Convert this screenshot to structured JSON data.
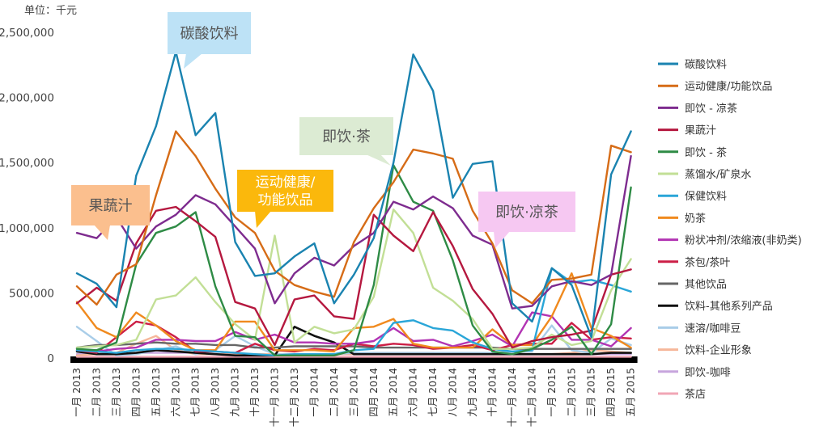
{
  "chart_data": {
    "type": "line",
    "unit_label": "单位：千元",
    "ylim": [
      0,
      2500000
    ],
    "yticks": [
      0,
      500000,
      1000000,
      1500000,
      2000000,
      2500000
    ],
    "ytick_labels": [
      "0",
      "500,000",
      "1,000,000",
      "1,500,000",
      "2,000,000",
      "2,500,000"
    ],
    "grid": false,
    "legend_position": "right",
    "categories": [
      "一月 2013",
      "二月 2013",
      "三月 2013",
      "四月 2013",
      "五月 2013",
      "六月 2013",
      "七月 2013",
      "八月 2013",
      "九月 2013",
      "十月 2013",
      "十一月 2013",
      "十二月 2013",
      "一月 2014",
      "二月 2014",
      "三月 2014",
      "四月 2014",
      "五月 2014",
      "六月 2014",
      "七月 2014",
      "八月 2014",
      "九月 2014",
      "十月 2014",
      "十一月 2014",
      "十二月 2014",
      "一月 2015",
      "二月 2015",
      "三月 2015",
      "四月 2015",
      "五月 2015"
    ],
    "series": [
      {
        "name": "碳酸饮料",
        "color": "#1a83b0",
        "values": [
          650000,
          570000,
          390000,
          1400000,
          1780000,
          2350000,
          1710000,
          1880000,
          890000,
          630000,
          650000,
          780000,
          880000,
          420000,
          640000,
          920000,
          1500000,
          2330000,
          2050000,
          1230000,
          1490000,
          1510000,
          420000,
          280000,
          690000,
          560000,
          160000,
          1410000,
          1740000
        ]
      },
      {
        "name": "运动健康/功能饮品",
        "color": "#d66c17",
        "values": [
          550000,
          410000,
          640000,
          720000,
          1250000,
          1740000,
          1550000,
          1300000,
          1080000,
          960000,
          670000,
          560000,
          510000,
          470000,
          890000,
          1150000,
          1350000,
          1600000,
          1570000,
          1530000,
          1130000,
          880000,
          520000,
          420000,
          600000,
          610000,
          640000,
          1630000,
          1580000
        ]
      },
      {
        "name": "即饮 - 凉茶",
        "color": "#7e2c8f",
        "values": [
          960000,
          920000,
          1080000,
          840000,
          1010000,
          1100000,
          1250000,
          1180000,
          1010000,
          840000,
          420000,
          650000,
          770000,
          710000,
          860000,
          960000,
          1200000,
          1140000,
          1240000,
          1150000,
          940000,
          870000,
          380000,
          400000,
          550000,
          590000,
          560000,
          640000,
          1550000
        ]
      },
      {
        "name": "果蔬汁",
        "color": "#b5183f",
        "values": [
          420000,
          540000,
          440000,
          880000,
          1130000,
          1160000,
          1050000,
          930000,
          430000,
          380000,
          100000,
          450000,
          480000,
          320000,
          300000,
          1100000,
          940000,
          820000,
          1120000,
          860000,
          530000,
          340000,
          80000,
          130000,
          160000,
          180000,
          210000,
          640000,
          680000
        ]
      },
      {
        "name": "即饮 - 茶",
        "color": "#2e8b45",
        "values": [
          70000,
          60000,
          120000,
          720000,
          960000,
          1010000,
          1120000,
          550000,
          170000,
          160000,
          20000,
          20000,
          20000,
          20000,
          60000,
          560000,
          1480000,
          1200000,
          1130000,
          750000,
          250000,
          50000,
          30000,
          70000,
          140000,
          240000,
          30000,
          260000,
          1310000
        ]
      },
      {
        "name": "蒸馏水/矿泉水",
        "color": "#c2df96",
        "values": [
          80000,
          90000,
          100000,
          140000,
          450000,
          480000,
          620000,
          430000,
          260000,
          140000,
          940000,
          120000,
          240000,
          190000,
          220000,
          470000,
          1140000,
          960000,
          540000,
          440000,
          300000,
          70000,
          70000,
          80000,
          180000,
          100000,
          130000,
          520000,
          760000
        ]
      },
      {
        "name": "保健饮料",
        "color": "#2aa6d8",
        "values": [
          60000,
          50000,
          40000,
          60000,
          70000,
          70000,
          60000,
          50000,
          40000,
          30000,
          20000,
          30000,
          30000,
          30000,
          60000,
          70000,
          270000,
          290000,
          230000,
          210000,
          120000,
          70000,
          50000,
          60000,
          690000,
          580000,
          600000,
          560000,
          510000
        ]
      },
      {
        "name": "奶茶",
        "color": "#f08a1e",
        "values": [
          430000,
          230000,
          160000,
          350000,
          250000,
          130000,
          60000,
          60000,
          280000,
          280000,
          60000,
          60000,
          60000,
          50000,
          230000,
          240000,
          300000,
          110000,
          80000,
          80000,
          80000,
          220000,
          100000,
          100000,
          320000,
          650000,
          230000,
          170000,
          80000
        ]
      },
      {
        "name": "粉状冲剂/浓缩液(非奶类)",
        "color": "#b234b3",
        "values": [
          70000,
          50000,
          70000,
          80000,
          140000,
          140000,
          130000,
          130000,
          200000,
          140000,
          180000,
          120000,
          120000,
          110000,
          110000,
          130000,
          230000,
          130000,
          140000,
          90000,
          130000,
          180000,
          90000,
          350000,
          320000,
          140000,
          140000,
          90000,
          230000
        ]
      },
      {
        "name": "茶包/茶叶",
        "color": "#cc1f46",
        "values": [
          60000,
          40000,
          160000,
          280000,
          250000,
          160000,
          50000,
          50000,
          40000,
          110000,
          60000,
          50000,
          70000,
          60000,
          110000,
          90000,
          110000,
          100000,
          70000,
          80000,
          100000,
          60000,
          100000,
          110000,
          110000,
          270000,
          140000,
          160000,
          150000
        ]
      },
      {
        "name": "其他饮品",
        "color": "#666666",
        "values": [
          80000,
          100000,
          100000,
          110000,
          120000,
          110000,
          110000,
          100000,
          100000,
          80000,
          80000,
          90000,
          90000,
          90000,
          90000,
          80000,
          80000,
          80000,
          80000,
          80000,
          80000,
          80000,
          70000,
          70000,
          70000,
          70000,
          70000,
          70000,
          70000
        ]
      },
      {
        "name": "饮料-其他系列产品",
        "color": "#111111",
        "values": [
          50000,
          30000,
          30000,
          40000,
          60000,
          50000,
          40000,
          30000,
          20000,
          20000,
          20000,
          240000,
          170000,
          120000,
          30000,
          30000,
          30000,
          30000,
          30000,
          30000,
          30000,
          30000,
          30000,
          30000,
          30000,
          30000,
          30000,
          40000,
          40000
        ]
      },
      {
        "name": "速溶/咖啡豆",
        "color": "#a9cde8",
        "values": [
          240000,
          130000,
          20000,
          30000,
          60000,
          90000,
          30000,
          60000,
          170000,
          90000,
          30000,
          30000,
          30000,
          30000,
          40000,
          40000,
          40000,
          40000,
          40000,
          40000,
          40000,
          40000,
          50000,
          50000,
          250000,
          60000,
          40000,
          150000,
          100000
        ]
      },
      {
        "name": "饮料-企业形象",
        "color": "#f6b79a",
        "values": [
          20000,
          30000,
          40000,
          110000,
          170000,
          60000,
          30000,
          30000,
          30000,
          30000,
          30000,
          30000,
          30000,
          30000,
          30000,
          40000,
          40000,
          40000,
          40000,
          30000,
          30000,
          30000,
          30000,
          30000,
          30000,
          40000,
          60000,
          50000,
          40000
        ]
      },
      {
        "name": "即饮-咖啡",
        "color": "#c7a5dd",
        "values": [
          30000,
          30000,
          30000,
          40000,
          40000,
          40000,
          40000,
          30000,
          30000,
          30000,
          30000,
          30000,
          30000,
          30000,
          30000,
          30000,
          30000,
          30000,
          30000,
          30000,
          30000,
          30000,
          30000,
          30000,
          30000,
          30000,
          30000,
          30000,
          30000
        ]
      },
      {
        "name": "茶店",
        "color": "#f1a6b5",
        "values": [
          10000,
          10000,
          10000,
          10000,
          10000,
          10000,
          10000,
          10000,
          10000,
          10000,
          10000,
          10000,
          10000,
          10000,
          10000,
          10000,
          10000,
          10000,
          10000,
          10000,
          10000,
          10000,
          10000,
          10000,
          10000,
          10000,
          10000,
          10000,
          10000
        ]
      }
    ],
    "annotations": [
      {
        "text": "碳酸饮料",
        "fill": "#bde2f6",
        "text_color": "#555555"
      },
      {
        "text": "果蔬汁",
        "fill": "#fbbf8e",
        "text_color": "#555555"
      },
      {
        "text": "运动健康/\n功能饮品",
        "fill": "#fbb80c",
        "text_color": "#ffffff"
      },
      {
        "text": "即饮·茶",
        "fill": "#dcebd3",
        "text_color": "#555555"
      },
      {
        "text": "即饮·凉茶",
        "fill": "#f6c8f2",
        "text_color": "#555555"
      }
    ]
  }
}
